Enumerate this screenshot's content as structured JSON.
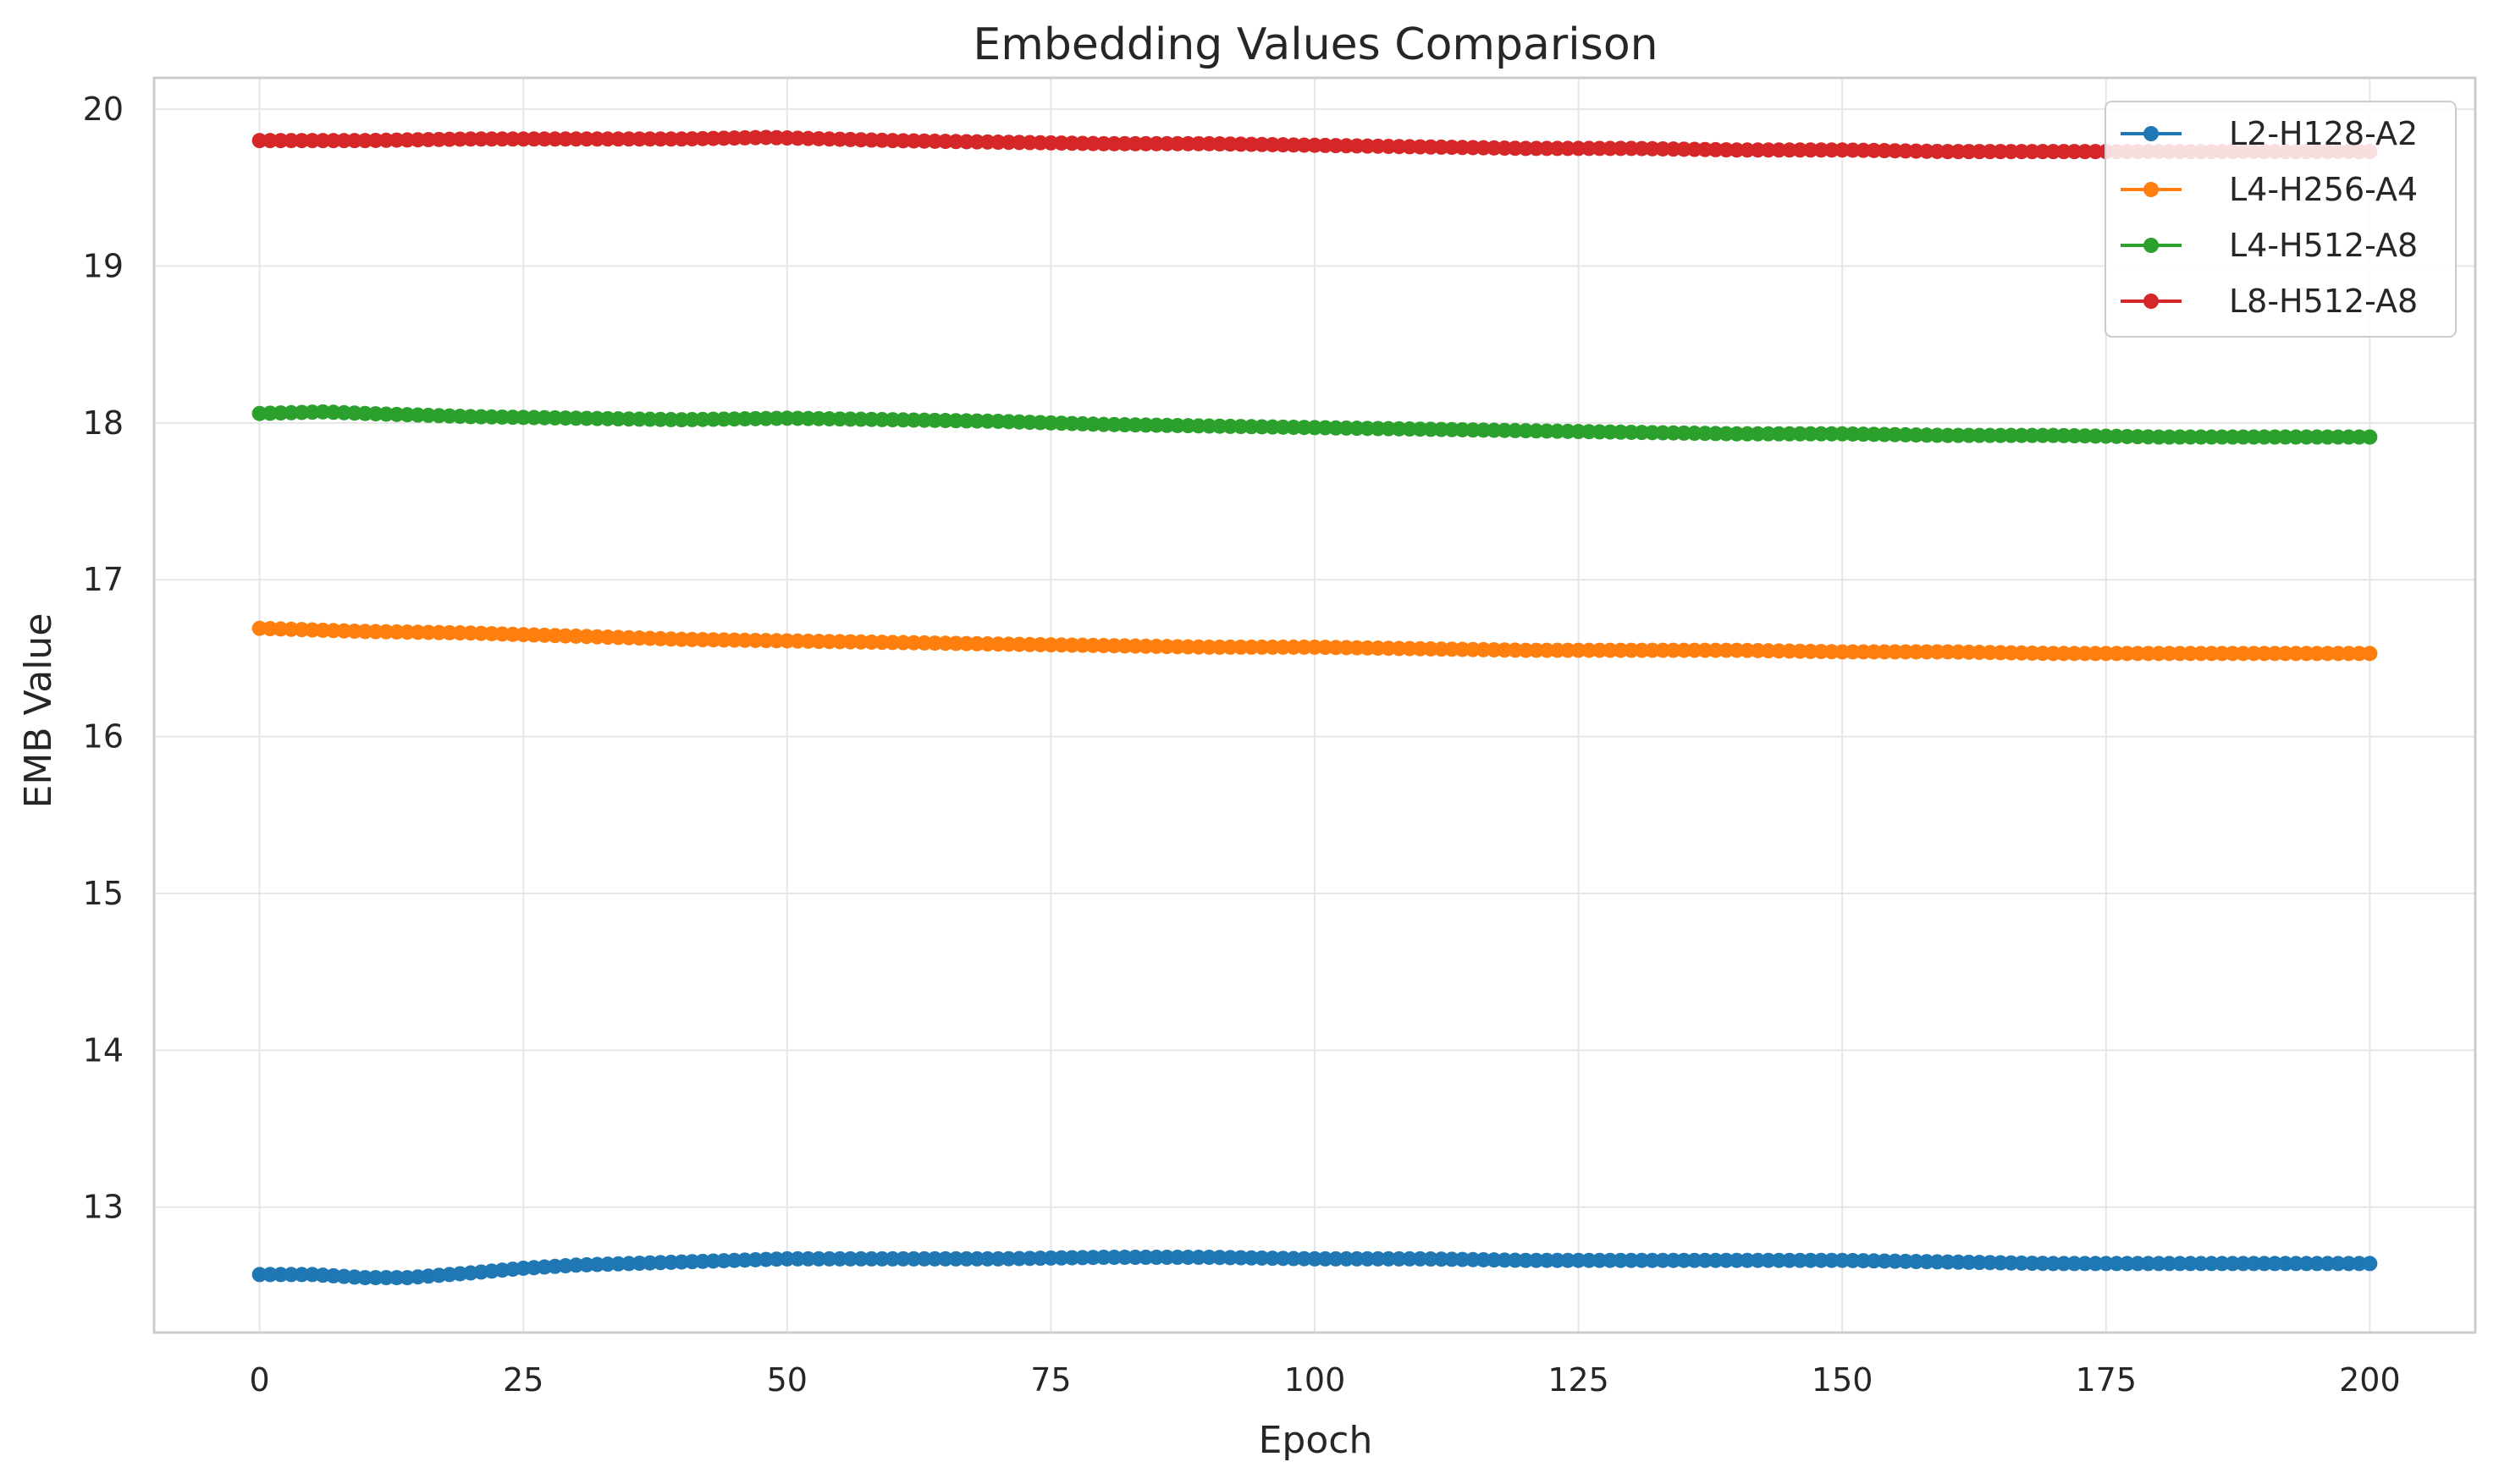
{
  "chart_data": {
    "type": "line",
    "title": "Embedding Values Comparison",
    "xlabel": "Epoch",
    "ylabel": "EMB Value",
    "xlim": [
      -10,
      210
    ],
    "ylim": [
      12.2,
      20.2
    ],
    "xticks": [
      0,
      25,
      50,
      75,
      100,
      125,
      150,
      175,
      200
    ],
    "yticks": [
      13,
      14,
      15,
      16,
      17,
      18,
      19,
      20
    ],
    "grid": true,
    "legend_position": "top-right",
    "marker": "circle",
    "x_range": [
      0,
      200
    ],
    "series": [
      {
        "name": "L2-H128-A2",
        "color": "#1f77b4",
        "keypoints": [
          [
            0,
            12.57
          ],
          [
            5,
            12.57
          ],
          [
            10,
            12.55
          ],
          [
            14,
            12.55
          ],
          [
            20,
            12.58
          ],
          [
            25,
            12.61
          ],
          [
            30,
            12.63
          ],
          [
            40,
            12.65
          ],
          [
            50,
            12.67
          ],
          [
            60,
            12.67
          ],
          [
            70,
            12.67
          ],
          [
            80,
            12.68
          ],
          [
            90,
            12.68
          ],
          [
            100,
            12.67
          ],
          [
            110,
            12.67
          ],
          [
            120,
            12.66
          ],
          [
            130,
            12.66
          ],
          [
            140,
            12.66
          ],
          [
            150,
            12.66
          ],
          [
            160,
            12.65
          ],
          [
            170,
            12.64
          ],
          [
            180,
            12.64
          ],
          [
            190,
            12.64
          ],
          [
            200,
            12.64
          ]
        ]
      },
      {
        "name": "L4-H256-A4",
        "color": "#ff7f0e",
        "keypoints": [
          [
            0,
            16.69
          ],
          [
            5,
            16.68
          ],
          [
            10,
            16.67
          ],
          [
            20,
            16.66
          ],
          [
            30,
            16.64
          ],
          [
            40,
            16.62
          ],
          [
            50,
            16.61
          ],
          [
            60,
            16.6
          ],
          [
            70,
            16.59
          ],
          [
            80,
            16.58
          ],
          [
            90,
            16.57
          ],
          [
            100,
            16.57
          ],
          [
            110,
            16.56
          ],
          [
            120,
            16.55
          ],
          [
            130,
            16.55
          ],
          [
            140,
            16.55
          ],
          [
            150,
            16.54
          ],
          [
            160,
            16.54
          ],
          [
            170,
            16.53
          ],
          [
            180,
            16.53
          ],
          [
            190,
            16.53
          ],
          [
            200,
            16.53
          ]
        ]
      },
      {
        "name": "L4-H512-A8",
        "color": "#2ca02c",
        "keypoints": [
          [
            0,
            18.06
          ],
          [
            6,
            18.07
          ],
          [
            10,
            18.06
          ],
          [
            20,
            18.04
          ],
          [
            30,
            18.03
          ],
          [
            40,
            18.02
          ],
          [
            50,
            18.03
          ],
          [
            60,
            18.02
          ],
          [
            70,
            18.01
          ],
          [
            80,
            17.99
          ],
          [
            90,
            17.98
          ],
          [
            100,
            17.97
          ],
          [
            110,
            17.96
          ],
          [
            120,
            17.95
          ],
          [
            130,
            17.94
          ],
          [
            140,
            17.93
          ],
          [
            150,
            17.93
          ],
          [
            160,
            17.92
          ],
          [
            170,
            17.92
          ],
          [
            180,
            17.91
          ],
          [
            190,
            17.91
          ],
          [
            200,
            17.91
          ]
        ]
      },
      {
        "name": "L8-H512-A8",
        "color": "#d62728",
        "keypoints": [
          [
            0,
            19.8
          ],
          [
            10,
            19.8
          ],
          [
            20,
            19.81
          ],
          [
            30,
            19.81
          ],
          [
            40,
            19.81
          ],
          [
            48,
            19.82
          ],
          [
            60,
            19.8
          ],
          [
            70,
            19.79
          ],
          [
            80,
            19.78
          ],
          [
            90,
            19.78
          ],
          [
            100,
            19.77
          ],
          [
            110,
            19.76
          ],
          [
            120,
            19.75
          ],
          [
            130,
            19.75
          ],
          [
            140,
            19.74
          ],
          [
            150,
            19.74
          ],
          [
            160,
            19.73
          ],
          [
            170,
            19.73
          ],
          [
            180,
            19.73
          ],
          [
            190,
            19.73
          ],
          [
            200,
            19.73
          ]
        ]
      }
    ]
  }
}
